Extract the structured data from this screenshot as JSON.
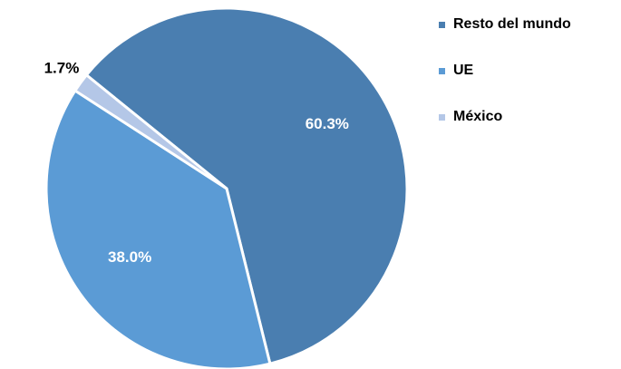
{
  "chart_data": {
    "type": "pie",
    "categories": [
      "Resto del mundo",
      "UE",
      "México"
    ],
    "values": [
      60.3,
      38.0,
      1.7
    ],
    "value_labels": [
      "60.3%",
      "38.0%",
      "1.7%"
    ],
    "colors": [
      "#4a7eb0",
      "#5b9bd5",
      "#b4c7e7"
    ],
    "legend": "right"
  }
}
